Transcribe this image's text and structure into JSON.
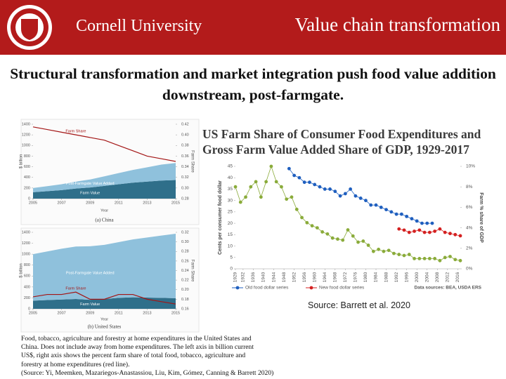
{
  "header": {
    "logo_text": "Cornell University",
    "title": "Value chain transformation"
  },
  "headline": "Structural transformation and market integration push food value addition downstream, post-farmgate.",
  "source": "Source: Barrett et al. 2020",
  "caption": [
    "Food, tobacco, agriculture and forestry at home expenditures in the United States and",
    "China. Does not include away from home expenditures. The left axis in billion current",
    "US$, right axis shows the percent farm share of total food, tobacco, agriculture and",
    "forestry at home expenditures (red line).",
    "(Source: Yi, Meemken, Mazariegos-Anastassiou, Liu, Kim, Gómez, Canning & Barrett 2020)"
  ],
  "chart_data": [
    {
      "type": "area",
      "title": "(a) China",
      "xlabel": "Year",
      "ylabel": "$ billion",
      "y2label": "Farm Share",
      "x": [
        2005,
        2006,
        2007,
        2008,
        2009,
        2010,
        2011,
        2012,
        2013,
        2014,
        2015
      ],
      "xlim": [
        2005,
        2015
      ],
      "xticks": [
        2005,
        2007,
        2009,
        2011,
        2013,
        2015
      ],
      "ylim": [
        0,
        1400
      ],
      "yticks": [
        0,
        200,
        400,
        600,
        800,
        1000,
        1200,
        1400
      ],
      "y2lim": [
        0.28,
        0.42
      ],
      "y2ticks": [
        0.28,
        {
          "value": 0.3,
          "label": "0.30"
        },
        0.32,
        0.34,
        0.36,
        0.38,
        {
          "value": 0.4,
          "label": "0.40"
        },
        0.42
      ],
      "series": [
        {
          "name": "Farm Value",
          "color": "#2f6f8a",
          "values": [
            120,
            140,
            160,
            190,
            210,
            240,
            270,
            300,
            320,
            340,
            350
          ]
        },
        {
          "name": "Post-Farmgate Value Added",
          "color": "#8fc1dc",
          "values": [
            80,
            95,
            110,
            130,
            150,
            180,
            210,
            240,
            270,
            300,
            320
          ]
        },
        {
          "name": "Farm Share",
          "color": "#a31515",
          "axis": "y2",
          "values": [
            0.415,
            0.41,
            0.405,
            0.4,
            0.395,
            0.39,
            0.38,
            0.37,
            0.36,
            0.355,
            0.35
          ]
        }
      ]
    },
    {
      "type": "area",
      "title": "(b) United States",
      "xlabel": "Year",
      "ylabel": "$ billion",
      "y2label": "Farm Share",
      "x": [
        2005,
        2006,
        2007,
        2008,
        2009,
        2010,
        2011,
        2012,
        2013,
        2014,
        2015
      ],
      "xlim": [
        2005,
        2015
      ],
      "xticks": [
        2005,
        2007,
        2009,
        2011,
        2013,
        2015
      ],
      "ylim": [
        0,
        1400
      ],
      "yticks": [
        0,
        200,
        400,
        600,
        800,
        1000,
        1200,
        1400
      ],
      "y2lim": [
        0.16,
        0.32
      ],
      "y2ticks": [
        0.16,
        0.18,
        {
          "value": 0.2,
          "label": "0.20"
        },
        0.22,
        0.24,
        0.26,
        0.28,
        {
          "value": 0.3,
          "label": "0.30"
        },
        0.32
      ],
      "series": [
        {
          "name": "Farm Value",
          "color": "#2f6f8a",
          "values": [
            150,
            160,
            170,
            180,
            165,
            180,
            200,
            210,
            205,
            200,
            195
          ]
        },
        {
          "name": "Post-Farmgate Value Added",
          "color": "#8fc1dc",
          "values": [
            850,
            890,
            930,
            960,
            980,
            990,
            1020,
            1060,
            1100,
            1140,
            1180
          ]
        },
        {
          "name": "Farm Share",
          "color": "#a31515",
          "axis": "y2",
          "values": [
            0.185,
            0.19,
            0.19,
            0.195,
            0.18,
            0.18,
            0.19,
            0.19,
            0.18,
            0.175,
            0.17
          ]
        }
      ]
    },
    {
      "type": "line",
      "title": "US Farm Share of Consumer Food Expenditures and Gross Farm Value Added Share of GDP, 1929-2017",
      "ylabel": "Cents per consumer food dollar",
      "y2label": "Farm % share of GDP",
      "note": "Data sources: BEA, USDA ERS",
      "markers": true,
      "xlim": [
        1929,
        2017
      ],
      "xticks": [
        1929,
        1932,
        1936,
        1940,
        1944,
        1948,
        1952,
        1956,
        1960,
        1964,
        1968,
        1972,
        1976,
        1980,
        1984,
        1988,
        1992,
        1996,
        2000,
        2004,
        2008,
        2012,
        2016
      ],
      "ylim": [
        0,
        45
      ],
      "yticks": [
        0,
        5,
        10,
        15,
        20,
        25,
        30,
        35,
        40,
        45
      ],
      "y2lim": [
        0,
        10
      ],
      "y2ticks": [
        {
          "value": 0,
          "label": "0%"
        },
        {
          "value": 2,
          "label": "2%"
        },
        {
          "value": 4,
          "label": "4%"
        },
        {
          "value": 6,
          "label": "6%"
        },
        {
          "value": 8,
          "label": "8%"
        },
        {
          "value": 10,
          "label": "10%"
        }
      ],
      "series": [
        {
          "name": "Old food dollar series",
          "color": "#1f5fbf",
          "x": [
            1950,
            1952,
            1954,
            1956,
            1958,
            1960,
            1962,
            1964,
            1966,
            1968,
            1970,
            1972,
            1974,
            1976,
            1978,
            1980,
            1982,
            1984,
            1986,
            1988,
            1990,
            1992,
            1994,
            1996,
            1998,
            2000,
            2002,
            2004,
            2006
          ],
          "values": [
            44,
            41,
            40,
            38,
            38,
            37,
            36,
            35,
            35,
            34,
            32,
            33,
            35,
            32,
            31,
            30,
            28,
            28,
            27,
            26,
            25,
            24,
            24,
            23,
            22,
            21,
            20,
            20,
            20
          ]
        },
        {
          "name": "New food dollar series",
          "color": "#d42020",
          "x": [
            1993,
            1995,
            1997,
            1999,
            2001,
            2003,
            2005,
            2007,
            2009,
            2011,
            2013,
            2015,
            2017
          ],
          "values": [
            17.5,
            17,
            16,
            16.5,
            17,
            16,
            16,
            16.5,
            17.5,
            16,
            15.5,
            15,
            14.5
          ]
        },
        {
          "color": "#8aab3a",
          "axis": "y2",
          "x": [
            1929,
            1931,
            1933,
            1935,
            1937,
            1939,
            1941,
            1943,
            1945,
            1947,
            1949,
            1951,
            1953,
            1955,
            1957,
            1959,
            1961,
            1963,
            1965,
            1967,
            1969,
            1971,
            1973,
            1975,
            1977,
            1979,
            1981,
            1983,
            1985,
            1987,
            1989,
            1991,
            1993,
            1995,
            1997,
            1999,
            2001,
            2003,
            2005,
            2007,
            2009,
            2011,
            2013,
            2015,
            2017
          ],
          "values": [
            8.0,
            6.5,
            7.0,
            8.0,
            8.5,
            7.0,
            8.5,
            10.0,
            8.5,
            8.0,
            6.8,
            7.0,
            5.8,
            5.0,
            4.5,
            4.2,
            4.0,
            3.6,
            3.4,
            3.0,
            2.9,
            2.8,
            3.8,
            3.2,
            2.6,
            2.7,
            2.3,
            1.7,
            1.9,
            1.7,
            1.8,
            1.5,
            1.4,
            1.3,
            1.4,
            1.0,
            1.0,
            1.0,
            1.0,
            1.0,
            0.8,
            1.1,
            1.2,
            0.9,
            0.8
          ]
        }
      ]
    }
  ]
}
